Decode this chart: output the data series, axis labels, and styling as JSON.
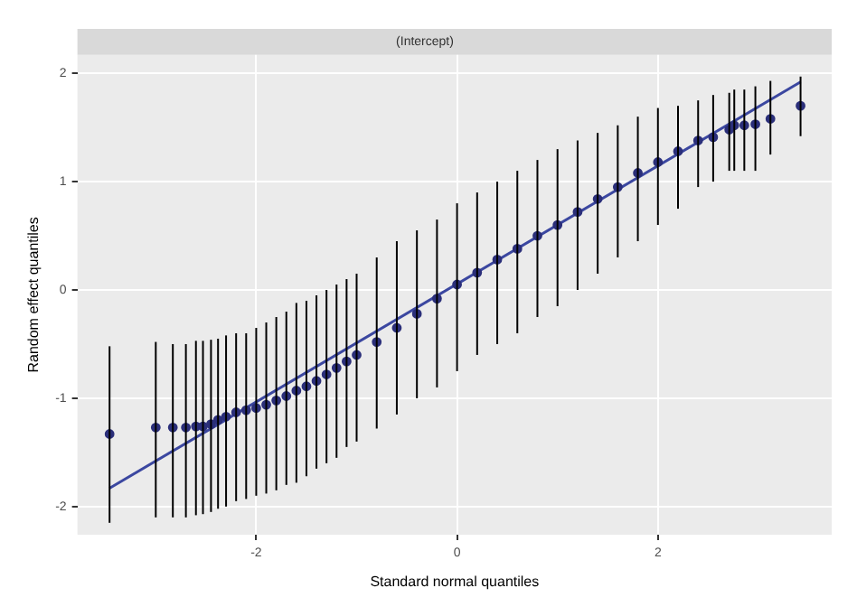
{
  "chart_data": {
    "type": "scatter",
    "title": "(Intercept)",
    "xlabel": "Standard normal quantiles",
    "ylabel": "Random effect quantiles",
    "xlim": [
      -3.78,
      3.73
    ],
    "ylim": [
      -2.26,
      2.17
    ],
    "xticks": [
      -2,
      0,
      2
    ],
    "yticks": [
      -2,
      -1,
      0,
      1,
      2
    ],
    "grid": true,
    "legend": false,
    "series": [
      {
        "marker": "circle",
        "color": "#2b2f7a",
        "x": [
          -3.46,
          -3.0,
          -2.83,
          -2.7,
          -2.6,
          -2.53,
          -2.45,
          -2.38,
          -2.3,
          -2.2,
          -2.1,
          -2.0,
          -1.9,
          -1.8,
          -1.7,
          -1.6,
          -1.5,
          -1.4,
          -1.3,
          -1.2,
          -1.1,
          -1.0,
          -0.8,
          -0.6,
          -0.4,
          -0.2,
          0.0,
          0.2,
          0.4,
          0.6,
          0.8,
          1.0,
          1.2,
          1.4,
          1.6,
          1.8,
          2.0,
          2.2,
          2.4,
          2.55,
          2.71,
          2.76,
          2.86,
          2.97,
          3.12,
          3.42
        ],
        "values": [
          -1.33,
          -1.27,
          -1.27,
          -1.27,
          -1.26,
          -1.26,
          -1.24,
          -1.2,
          -1.17,
          -1.13,
          -1.11,
          -1.09,
          -1.06,
          -1.02,
          -0.98,
          -0.93,
          -0.89,
          -0.84,
          -0.78,
          -0.72,
          -0.66,
          -0.6,
          -0.48,
          -0.35,
          -0.22,
          -0.08,
          0.05,
          0.16,
          0.28,
          0.38,
          0.5,
          0.6,
          0.72,
          0.84,
          0.95,
          1.08,
          1.18,
          1.28,
          1.38,
          1.41,
          1.48,
          1.52,
          1.52,
          1.53,
          1.58,
          1.7
        ],
        "errors": [
          [
            -2.15,
            -0.52
          ],
          [
            -2.1,
            -0.48
          ],
          [
            -2.1,
            -0.5
          ],
          [
            -2.1,
            -0.5
          ],
          [
            -2.08,
            -0.47
          ],
          [
            -2.07,
            -0.47
          ],
          [
            -2.05,
            -0.46
          ],
          [
            -2.02,
            -0.45
          ],
          [
            -2.0,
            -0.42
          ],
          [
            -1.95,
            -0.4
          ],
          [
            -1.93,
            -0.4
          ],
          [
            -1.9,
            -0.35
          ],
          [
            -1.88,
            -0.3
          ],
          [
            -1.85,
            -0.25
          ],
          [
            -1.8,
            -0.2
          ],
          [
            -1.78,
            -0.12
          ],
          [
            -1.72,
            -0.1
          ],
          [
            -1.65,
            -0.05
          ],
          [
            -1.6,
            0.0
          ],
          [
            -1.55,
            0.05
          ],
          [
            -1.45,
            0.1
          ],
          [
            -1.4,
            0.15
          ],
          [
            -1.28,
            0.3
          ],
          [
            -1.15,
            0.45
          ],
          [
            -1.0,
            0.55
          ],
          [
            -0.9,
            0.65
          ],
          [
            -0.75,
            0.8
          ],
          [
            -0.6,
            0.9
          ],
          [
            -0.5,
            1.0
          ],
          [
            -0.4,
            1.1
          ],
          [
            -0.25,
            1.2
          ],
          [
            -0.15,
            1.3
          ],
          [
            0.0,
            1.38
          ],
          [
            0.15,
            1.45
          ],
          [
            0.3,
            1.52
          ],
          [
            0.45,
            1.6
          ],
          [
            0.6,
            1.68
          ],
          [
            0.75,
            1.7
          ],
          [
            0.95,
            1.75
          ],
          [
            1.0,
            1.8
          ],
          [
            1.1,
            1.82
          ],
          [
            1.1,
            1.85
          ],
          [
            1.1,
            1.85
          ],
          [
            1.1,
            1.88
          ],
          [
            1.25,
            1.93
          ],
          [
            1.42,
            1.97
          ]
        ]
      },
      {
        "type": "line",
        "marker": "none",
        "color": "#3b47a0",
        "x": [
          -3.46,
          3.42
        ],
        "values": [
          -1.83,
          1.92
        ]
      }
    ]
  }
}
